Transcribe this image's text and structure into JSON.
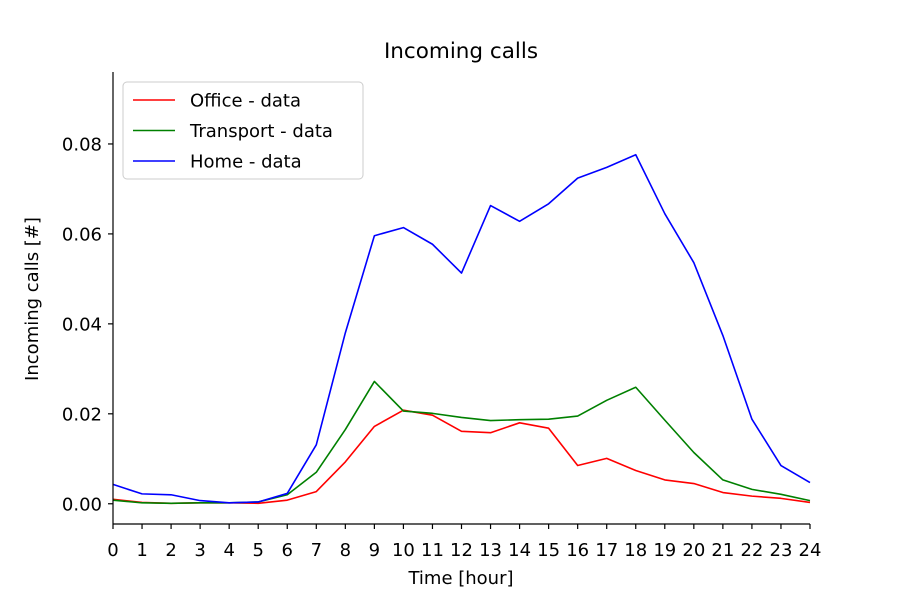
{
  "chart_data": {
    "type": "line",
    "title": "Incoming calls",
    "xlabel": "Time [hour]",
    "ylabel": "Incoming calls [#]",
    "xlim": [
      0,
      24
    ],
    "ylim": [
      -0.0045,
      0.096
    ],
    "xticks": [
      "0",
      "1",
      "2",
      "3",
      "4",
      "5",
      "6",
      "7",
      "8",
      "9",
      "10",
      "11",
      "12",
      "13",
      "14",
      "15",
      "16",
      "17",
      "18",
      "19",
      "20",
      "21",
      "22",
      "23",
      "24"
    ],
    "yticks": [
      "0.00",
      "0.02",
      "0.04",
      "0.06",
      "0.08"
    ],
    "grid": false,
    "legend_position": "top-left",
    "x": [
      0,
      1,
      2,
      3,
      4,
      5,
      6,
      7,
      8,
      9,
      10,
      11,
      12,
      13,
      14,
      15,
      16,
      17,
      18,
      19,
      20,
      21,
      22,
      23,
      24
    ],
    "series": [
      {
        "name": "Office - data",
        "color": "#ff0000",
        "values": [
          0.001,
          0.0003,
          0.0001,
          0.0002,
          0.0002,
          0.0001,
          0.0008,
          0.0027,
          0.0093,
          0.0172,
          0.0208,
          0.0197,
          0.0161,
          0.0158,
          0.018,
          0.0168,
          0.0085,
          0.0101,
          0.0074,
          0.0053,
          0.0045,
          0.0025,
          0.0017,
          0.0012,
          0.0003
        ]
      },
      {
        "name": "Transport - data",
        "color": "#008000",
        "values": [
          0.0008,
          0.0002,
          0.0001,
          0.0002,
          0.0002,
          0.0004,
          0.002,
          0.007,
          0.0165,
          0.0272,
          0.0206,
          0.0201,
          0.0192,
          0.0185,
          0.0187,
          0.0188,
          0.0195,
          0.023,
          0.0259,
          0.0186,
          0.0114,
          0.0053,
          0.0032,
          0.0021,
          0.0007
        ]
      },
      {
        "name": "Home - data",
        "color": "#0000ff",
        "values": [
          0.0043,
          0.0022,
          0.002,
          0.0007,
          0.0002,
          0.0004,
          0.0023,
          0.0131,
          0.038,
          0.0596,
          0.0614,
          0.0577,
          0.0513,
          0.0663,
          0.0628,
          0.0667,
          0.0724,
          0.0748,
          0.0776,
          0.0645,
          0.0536,
          0.0374,
          0.0188,
          0.0085,
          0.0047
        ]
      }
    ]
  }
}
